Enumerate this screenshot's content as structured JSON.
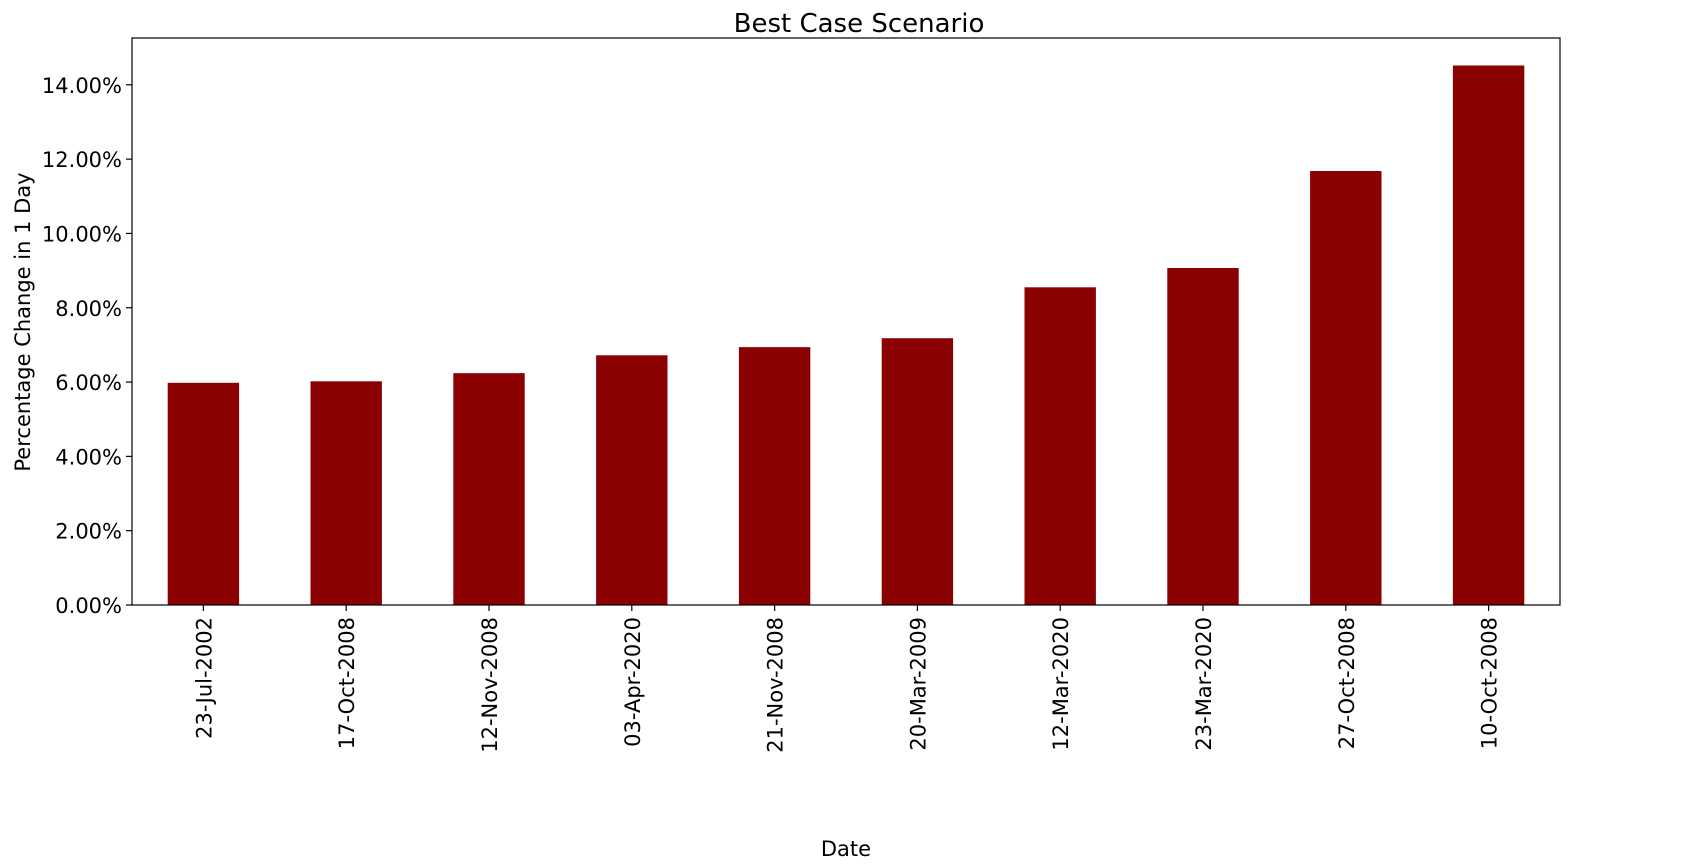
{
  "chart_data": {
    "type": "bar",
    "title": "Best Case Scenario",
    "xlabel": "Date",
    "ylabel": "Percentage Change in 1 Day",
    "categories": [
      "23-Jul-2002",
      "17-Oct-2008",
      "12-Nov-2008",
      "03-Apr-2020",
      "21-Nov-2008",
      "20-Mar-2009",
      "12-Mar-2020",
      "23-Mar-2020",
      "27-Oct-2008",
      "10-Oct-2008"
    ],
    "values": [
      5.98,
      6.02,
      6.24,
      6.72,
      6.94,
      7.18,
      8.55,
      9.07,
      11.68,
      14.52
    ],
    "ylim": [
      0,
      15.26
    ],
    "yticks": [
      0,
      2,
      4,
      6,
      8,
      10,
      12,
      14
    ],
    "ytick_labels": [
      "0.00%",
      "2.00%",
      "4.00%",
      "6.00%",
      "8.00%",
      "10.00%",
      "12.00%",
      "14.00%"
    ],
    "grid": false,
    "legend": "none",
    "bar_color": "#8b0000"
  }
}
